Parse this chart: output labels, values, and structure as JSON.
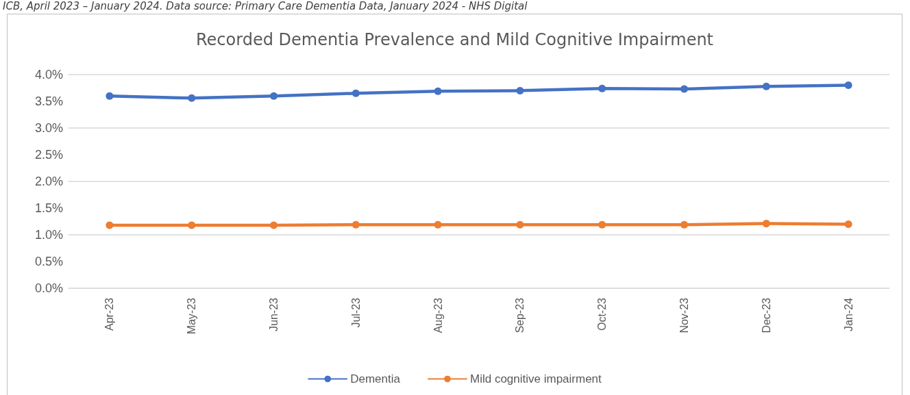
{
  "chart_data": {
    "type": "line",
    "title": "Recorded Dementia Prevalence and Mild Cognitive Impairment",
    "annotations": [
      "ICB, April 2023 – January 2024. Data source: Primary Care Dementia Data, January 2024 - NHS Digital"
    ],
    "categories": [
      "Apr-23",
      "May-23",
      "Jun-23",
      "Jul-23",
      "Aug-23",
      "Sep-23",
      "Oct-23",
      "Nov-23",
      "Dec-23",
      "Jan-24"
    ],
    "series": [
      {
        "name": "Dementia",
        "color": "#4472c4",
        "values": [
          3.6,
          3.56,
          3.6,
          3.65,
          3.69,
          3.7,
          3.74,
          3.73,
          3.78,
          3.8
        ]
      },
      {
        "name": "Mild cognitive impairment",
        "color": "#ed7d31",
        "values": [
          1.18,
          1.18,
          1.18,
          1.19,
          1.19,
          1.19,
          1.19,
          1.19,
          1.21,
          1.2
        ]
      }
    ],
    "ylim": [
      0,
      4
    ],
    "yticks": [
      {
        "value": 0,
        "label": "0.0%"
      },
      {
        "value": 0.5,
        "label": "0.5%"
      },
      {
        "value": 1,
        "label": "1.0%"
      },
      {
        "value": 1.5,
        "label": "1.5%"
      },
      {
        "value": 2,
        "label": "2.0%"
      },
      {
        "value": 2.5,
        "label": "2.5%"
      },
      {
        "value": 3,
        "label": "3.0%"
      },
      {
        "value": 3.5,
        "label": "3.5%"
      },
      {
        "value": 4,
        "label": "4.0%"
      }
    ],
    "grid": "y",
    "legend": "bottom",
    "marker": "circle",
    "line_style": "solid"
  }
}
